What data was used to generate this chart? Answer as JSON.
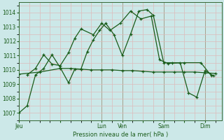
{
  "title": "",
  "xlabel": "Pression niveau de la mer( hPa )",
  "bg_color": "#cce8e8",
  "grid_color": "#ddbbbb",
  "line_color": "#1a5c1a",
  "ylim": [
    1006.5,
    1014.7
  ],
  "yticks": [
    1007,
    1008,
    1009,
    1010,
    1011,
    1012,
    1013,
    1014
  ],
  "day_labels": [
    "Jeu",
    "",
    "Lun",
    "Ven",
    "",
    "Sam",
    "",
    "Dim"
  ],
  "day_positions": [
    0,
    2,
    4,
    5,
    6,
    7,
    8,
    9
  ],
  "vline_positions": [
    0,
    4,
    5,
    7,
    9
  ],
  "xlim": [
    0,
    9.8
  ],
  "line_flat_x": [
    0,
    1,
    2,
    2.5,
    3,
    3.5,
    4,
    4.5,
    5,
    5.5,
    6,
    6.5,
    7,
    7.5,
    8,
    8.5,
    9,
    9.5
  ],
  "line_flat_y": [
    1009.7,
    1009.85,
    1010.1,
    1010.1,
    1010.05,
    1010.0,
    1010.0,
    1010.0,
    1009.95,
    1009.95,
    1009.9,
    1009.85,
    1009.85,
    1009.85,
    1009.85,
    1009.85,
    1009.8,
    1009.75
  ],
  "line_mid_x": [
    0,
    0.4,
    0.8,
    1.2,
    1.6,
    2.0,
    2.4,
    2.7,
    3.0,
    3.3,
    3.6,
    3.9,
    4.2,
    4.6,
    5.0,
    5.4,
    5.8,
    6.2,
    6.5,
    7.0,
    7.4,
    7.8,
    8.2,
    8.6,
    9.0,
    9.4
  ],
  "line_mid_y": [
    1007.0,
    1007.5,
    1009.65,
    1010.1,
    1011.05,
    1010.15,
    1009.1,
    1010.05,
    1010.05,
    1011.25,
    1012.1,
    1012.75,
    1013.25,
    1012.45,
    1011.0,
    1012.5,
    1014.1,
    1014.2,
    1013.8,
    1010.5,
    1010.5,
    1010.5,
    1008.4,
    1008.1,
    1009.95,
    1009.6
  ],
  "line_top_x": [
    0.4,
    0.8,
    1.2,
    1.6,
    2.0,
    2.4,
    2.7,
    3.0,
    3.6,
    4.0,
    4.4,
    4.9,
    5.4,
    5.9,
    6.4,
    6.8,
    7.2,
    8.0,
    8.8,
    9.3
  ],
  "line_top_y": [
    1009.65,
    1010.1,
    1011.05,
    1010.4,
    1010.3,
    1011.2,
    1012.2,
    1012.85,
    1012.45,
    1013.25,
    1012.75,
    1013.25,
    1014.1,
    1013.55,
    1013.75,
    1010.7,
    1010.45,
    1010.5,
    1010.5,
    1009.6
  ]
}
